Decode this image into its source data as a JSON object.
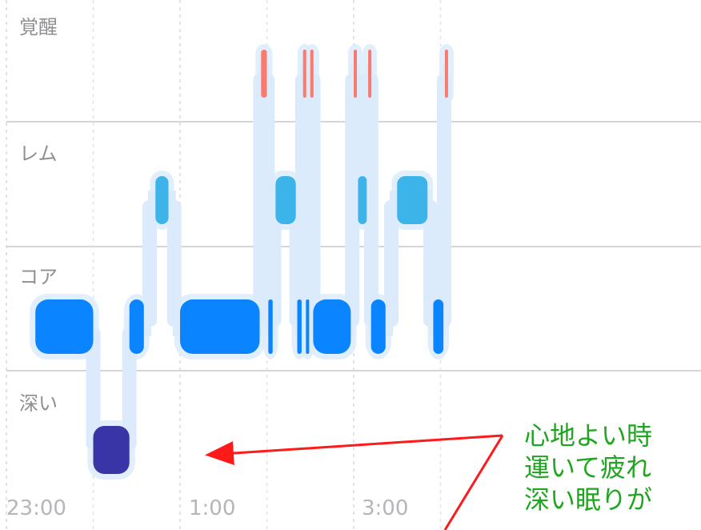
{
  "stages": [
    "覚醒",
    "レム",
    "コア",
    "深い"
  ],
  "time_labels": [
    "23:00",
    "1:00",
    "3:00"
  ],
  "annotation_lines": [
    "心地よい時",
    "運いて疲れ",
    "深い眠りが"
  ],
  "colors": {
    "awake": "#f77b6e",
    "rem": "#3cb4ea",
    "core": "#0a84ff",
    "deep": "#3a35a6",
    "connector": "#dcebfb",
    "gridline": "#c7c7cc",
    "annotation_text": "#1fa51f",
    "arrow": "#ff1a1a"
  },
  "chart_data": {
    "type": "sleep-stage-timeline",
    "stages": [
      "覚醒",
      "レム",
      "コア",
      "深い"
    ],
    "x_ticks": [
      "23:00",
      "1:00",
      "3:00"
    ],
    "segments": [
      {
        "stage": "コア",
        "start": "23:20",
        "end": "0:00"
      },
      {
        "stage": "深い",
        "start": "0:00",
        "end": "0:25"
      },
      {
        "stage": "コア",
        "start": "0:25",
        "end": "0:35"
      },
      {
        "stage": "レム",
        "start": "0:43",
        "end": "0:52"
      },
      {
        "stage": "コア",
        "start": "1:00",
        "end": "1:55"
      },
      {
        "stage": "覚醒",
        "start": "1:56",
        "end": "2:00"
      },
      {
        "stage": "コア",
        "start": "2:01",
        "end": "2:04"
      },
      {
        "stage": "レム",
        "start": "2:06",
        "end": "2:20"
      },
      {
        "stage": "コア",
        "start": "2:21",
        "end": "2:24"
      },
      {
        "stage": "覚醒",
        "start": "2:25",
        "end": "2:26"
      },
      {
        "stage": "コア",
        "start": "2:27",
        "end": "2:29"
      },
      {
        "stage": "覚醒",
        "start": "2:30",
        "end": "2:31"
      },
      {
        "stage": "コア",
        "start": "2:32",
        "end": "2:58"
      },
      {
        "stage": "覚醒",
        "start": "3:00",
        "end": "3:01"
      },
      {
        "stage": "レム",
        "start": "3:03",
        "end": "3:09"
      },
      {
        "stage": "覚醒",
        "start": "3:10",
        "end": "3:11"
      },
      {
        "stage": "コア",
        "start": "3:12",
        "end": "3:22"
      },
      {
        "stage": "レム",
        "start": "3:30",
        "end": "3:51"
      },
      {
        "stage": "コア",
        "start": "3:55",
        "end": "4:02"
      },
      {
        "stage": "覚醒",
        "start": "4:03",
        "end": "4:04"
      }
    ]
  }
}
